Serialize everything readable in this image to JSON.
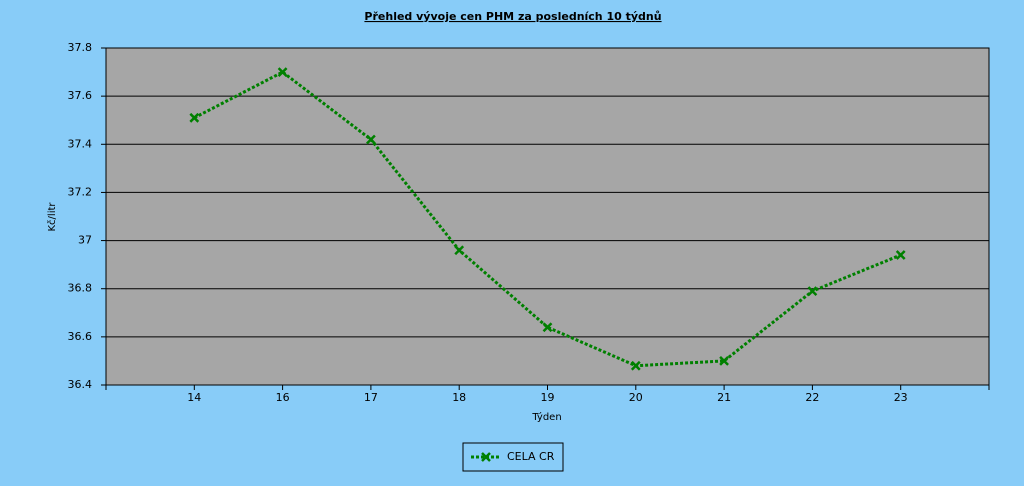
{
  "chart_data": {
    "type": "line",
    "title": "Přehled vývoje cen PHM za posledních 10 týdnů",
    "x_label": "Týden",
    "y_label": "Kč/litr",
    "categories": [
      "14",
      "16",
      "17",
      "18",
      "19",
      "20",
      "21",
      "22",
      "23"
    ],
    "series": [
      {
        "name": "CELA CR",
        "color": "#008000",
        "values": [
          37.51,
          37.7,
          37.42,
          36.96,
          36.64,
          36.48,
          36.5,
          36.79,
          36.94
        ]
      }
    ],
    "ylim": [
      36.4,
      37.8
    ],
    "yticks": [
      36.4,
      36.6,
      36.8,
      37,
      37.2,
      37.4,
      37.6,
      37.8
    ],
    "grid": true,
    "legend": "bottom"
  }
}
